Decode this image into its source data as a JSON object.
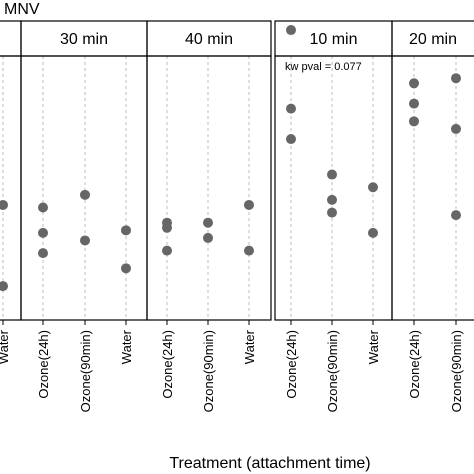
{
  "chart_data": {
    "type": "scatter",
    "title": "MNV",
    "xlabel": "Treatment (attachment time)",
    "ylabel": "",
    "categories": [
      "Ozone(24h)",
      "Ozone(90min)",
      "Water"
    ],
    "panels": [
      {
        "label": "",
        "categories": [
          "Water"
        ],
        "points": [
          {
            "x": "Water",
            "y": 0.58
          },
          {
            "x": "Water",
            "y": 0.26
          }
        ],
        "annotation": ""
      },
      {
        "label": "30 min",
        "points": [
          {
            "x": "Ozone(24h)",
            "y": 0.57
          },
          {
            "x": "Ozone(24h)",
            "y": 0.47
          },
          {
            "x": "Ozone(24h)",
            "y": 0.39
          },
          {
            "x": "Ozone(90min)",
            "y": 0.62
          },
          {
            "x": "Ozone(90min)",
            "y": 0.44
          },
          {
            "x": "Water",
            "y": 0.48
          },
          {
            "x": "Water",
            "y": 0.33
          }
        ],
        "annotation": ""
      },
      {
        "label": "40 min",
        "points": [
          {
            "x": "Ozone(24h)",
            "y": 0.51
          },
          {
            "x": "Ozone(24h)",
            "y": 0.49
          },
          {
            "x": "Ozone(24h)",
            "y": 0.4
          },
          {
            "x": "Ozone(90min)",
            "y": 0.51
          },
          {
            "x": "Ozone(90min)",
            "y": 0.45
          },
          {
            "x": "Water",
            "y": 0.58
          },
          {
            "x": "Water",
            "y": 0.4
          }
        ],
        "annotation": ""
      },
      {
        "label": "10 min",
        "points": [
          {
            "x": "Ozone(24h)",
            "y": 1.27
          },
          {
            "x": "Ozone(24h)",
            "y": 0.96
          },
          {
            "x": "Ozone(24h)",
            "y": 0.84
          },
          {
            "x": "Ozone(90min)",
            "y": 0.7
          },
          {
            "x": "Ozone(90min)",
            "y": 0.6
          },
          {
            "x": "Ozone(90min)",
            "y": 0.55
          },
          {
            "x": "Water",
            "y": 0.65
          },
          {
            "x": "Water",
            "y": 0.47
          }
        ],
        "annotation": "kw pval = 0.077"
      },
      {
        "label": "20 min",
        "categories": [
          "Ozone(24h)",
          "Ozone(90min)"
        ],
        "points": [
          {
            "x": "Ozone(24h)",
            "y": 1.06
          },
          {
            "x": "Ozone(24h)",
            "y": 0.98
          },
          {
            "x": "Ozone(24h)",
            "y": 0.91
          },
          {
            "x": "Ozone(90min)",
            "y": 1.08
          },
          {
            "x": "Ozone(90min)",
            "y": 0.88
          },
          {
            "x": "Ozone(90min)",
            "y": 0.54
          }
        ],
        "annotation": ""
      }
    ],
    "grid": "dashed vertical",
    "point_color": "#666666"
  }
}
